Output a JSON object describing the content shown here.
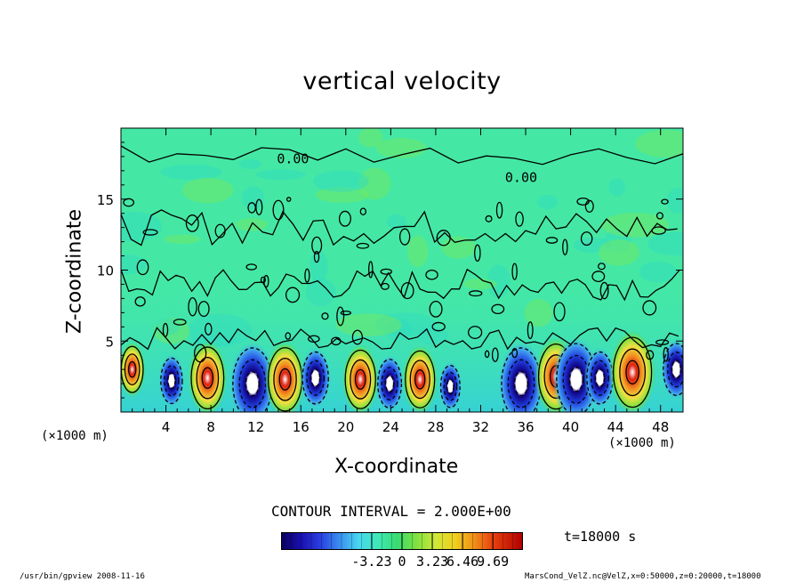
{
  "chart_data": {
    "type": "heatmap",
    "title": "vertical velocity",
    "xlabel": "X-coordinate",
    "ylabel": "Z-coordinate",
    "x_unit_left": "(×1000 m)",
    "x_unit_right": "(×1000 m)",
    "xlim": [
      0,
      50
    ],
    "ylim": [
      0,
      20
    ],
    "x_ticks": [
      "4",
      "8",
      "12",
      "16",
      "20",
      "24",
      "28",
      "32",
      "36",
      "40",
      "44",
      "48"
    ],
    "x_tick_values": [
      4,
      8,
      12,
      16,
      20,
      24,
      28,
      32,
      36,
      40,
      44,
      48
    ],
    "y_ticks": [
      "5",
      "10",
      "15"
    ],
    "y_tick_values": [
      5,
      10,
      15
    ],
    "contour_labels": [
      {
        "text": "0.00",
        "x": 15.3,
        "z": 17.8
      },
      {
        "text": "0.00",
        "x": 35.6,
        "z": 16.5
      }
    ],
    "cells": [
      {
        "x": 1.0,
        "z": 3.0,
        "v": 3.2
      },
      {
        "x": 4.5,
        "z": 2.2,
        "v": -3.0
      },
      {
        "x": 7.7,
        "z": 2.4,
        "v": 8.0
      },
      {
        "x": 11.7,
        "z": 2.0,
        "v": -11.0
      },
      {
        "x": 14.6,
        "z": 2.3,
        "v": 8.5
      },
      {
        "x": 17.3,
        "z": 2.4,
        "v": -5.0
      },
      {
        "x": 21.3,
        "z": 2.3,
        "v": 7.0
      },
      {
        "x": 23.9,
        "z": 2.0,
        "v": -4.0
      },
      {
        "x": 26.6,
        "z": 2.3,
        "v": 6.5
      },
      {
        "x": 29.3,
        "z": 1.8,
        "v": -2.0
      },
      {
        "x": 35.6,
        "z": 2.0,
        "v": -11.0
      },
      {
        "x": 38.7,
        "z": 2.5,
        "v": 9.0
      },
      {
        "x": 40.5,
        "z": 2.3,
        "v": -11.0
      },
      {
        "x": 42.6,
        "z": 2.4,
        "v": -5.0
      },
      {
        "x": 45.5,
        "z": 2.8,
        "v": 10.5
      },
      {
        "x": 49.4,
        "z": 3.0,
        "v": -5.0
      }
    ],
    "contour_interval": "CONTOUR INTERVAL = 2.000E+00",
    "colorbar": {
      "ticks": [
        "-3.23",
        "0",
        "3.23",
        "6.46",
        "9.69"
      ],
      "tick_values": [
        -3.23,
        0,
        3.23,
        6.46,
        9.69
      ],
      "range": [
        -12.9,
        12.9
      ]
    },
    "time_label": "t=18000 s",
    "footer_left": "/usr/bin/gpview  2008-11-16",
    "footer_right": "MarsCond_VelZ.nc@VelZ,x=0:50000,z=0:20000,t=18000"
  }
}
